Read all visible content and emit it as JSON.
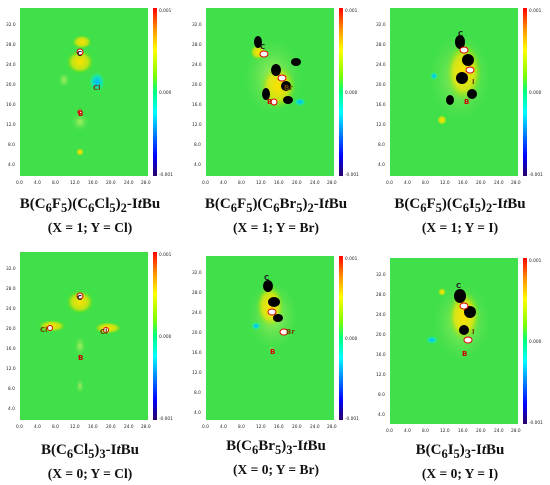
{
  "figure": {
    "scale": {
      "max": "0.001",
      "mid": "0.000",
      "min": "-0.001",
      "colors": [
        "#ff0000",
        "#ff8c00",
        "#ffff00",
        "#7fff00",
        "#00ff7f",
        "#00ffff",
        "#0080ff",
        "#0000ff",
        "#2a0066"
      ]
    },
    "x_ticks": [
      "0.0",
      "4.0",
      "8.0",
      "12.0",
      "16.0",
      "20.0",
      "24.0",
      "28.0"
    ],
    "panels": [
      {
        "y_ticks": [
          "32.0",
          "28.0",
          "24.0",
          "20.0",
          "16.0",
          "12.0",
          "8.0",
          "4.0",
          "0.0"
        ],
        "atoms": [
          {
            "label": "C"
          },
          {
            "label": "Cl"
          },
          {
            "label": "B"
          }
        ],
        "caption": {
          "formula": "B(C6F5)(C6Cl5)2-ItBu",
          "formula_parts": {
            "a": "B(C",
            "b": "6",
            "c": "F",
            "d": "5",
            "e": ")(C",
            "f": "6",
            "g": "Cl",
            "h": "5",
            "i": ")",
            "j": "2",
            "k": "-I",
            "l": "t",
            "m": "Bu"
          },
          "params": "(X = 1; Y = Cl)"
        }
      },
      {
        "y_ticks": [
          "32.0",
          "28.0",
          "24.0",
          "20.0",
          "16.0",
          "12.0",
          "8.0",
          "4.0",
          "0.0"
        ],
        "atoms": [
          {
            "label": "C"
          },
          {
            "label": "Br"
          },
          {
            "label": "B"
          }
        ],
        "caption": {
          "formula": "B(C6F5)(C6Br5)2-ItBu",
          "formula_parts": {
            "a": "B(C",
            "b": "6",
            "c": "F",
            "d": "5",
            "e": ")(C",
            "f": "6",
            "g": "Br",
            "h": "5",
            "i": ")",
            "j": "2",
            "k": "-I",
            "l": "t",
            "m": "Bu"
          },
          "params": "(X = 1; Y = Br)"
        }
      },
      {
        "y_ticks": [
          "32.0",
          "28.0",
          "24.0",
          "20.0",
          "16.0",
          "12.0",
          "8.0",
          "4.0",
          "0.0"
        ],
        "atoms": [
          {
            "label": "C"
          },
          {
            "label": "I"
          },
          {
            "label": "B"
          }
        ],
        "caption": {
          "formula": "B(C6F5)(C6I5)2-ItBu",
          "formula_parts": {
            "a": "B(C",
            "b": "6",
            "c": "F",
            "d": "5",
            "e": ")(C",
            "f": "6",
            "g": "I",
            "h": "5",
            "i": ")",
            "j": "2",
            "k": "-I",
            "l": "t",
            "m": "Bu"
          },
          "params": "(X = 1; Y = I)"
        }
      },
      {
        "y_ticks": [
          "32.0",
          "28.0",
          "24.0",
          "20.0",
          "16.0",
          "12.0",
          "8.0",
          "4.0",
          "0.0"
        ],
        "atoms": [
          {
            "label": "C"
          },
          {
            "label": "Cl"
          },
          {
            "label": "Cl"
          },
          {
            "label": "B"
          }
        ],
        "caption": {
          "formula": "B(C6Cl5)3-ItBu",
          "formula_parts": {
            "a": "B(C",
            "b": "6",
            "c": "Cl",
            "d": "5",
            "e": ")",
            "f": "3",
            "g": "-I",
            "h": "t",
            "i": "Bu"
          },
          "params": "(X = 0; Y = Cl)"
        }
      },
      {
        "y_ticks": [
          "32.0",
          "28.0",
          "24.0",
          "20.0",
          "16.0",
          "12.0",
          "8.0",
          "4.0",
          "0.0"
        ],
        "atoms": [
          {
            "label": "C"
          },
          {
            "label": "Br"
          },
          {
            "label": "B"
          }
        ],
        "caption": {
          "formula": "B(C6Br5)3-ItBu",
          "formula_parts": {
            "a": "B(C",
            "b": "6",
            "c": "Br",
            "d": "5",
            "e": ")",
            "f": "3",
            "g": "-I",
            "h": "t",
            "i": "Bu"
          },
          "params": "(X = 0; Y = Br)"
        }
      },
      {
        "y_ticks": [
          "32.0",
          "28.0",
          "24.0",
          "20.0",
          "16.0",
          "12.0",
          "8.0",
          "4.0",
          "0.0"
        ],
        "atoms": [
          {
            "label": "C"
          },
          {
            "label": "I"
          },
          {
            "label": "B"
          }
        ],
        "caption": {
          "formula": "B(C6I5)3-ItBu",
          "formula_parts": {
            "a": "B(C",
            "b": "6",
            "c": "I",
            "d": "5",
            "e": ")",
            "f": "3",
            "g": "-I",
            "h": "t",
            "i": "Bu"
          },
          "params": "(X = 0; Y = I)"
        }
      }
    ]
  }
}
